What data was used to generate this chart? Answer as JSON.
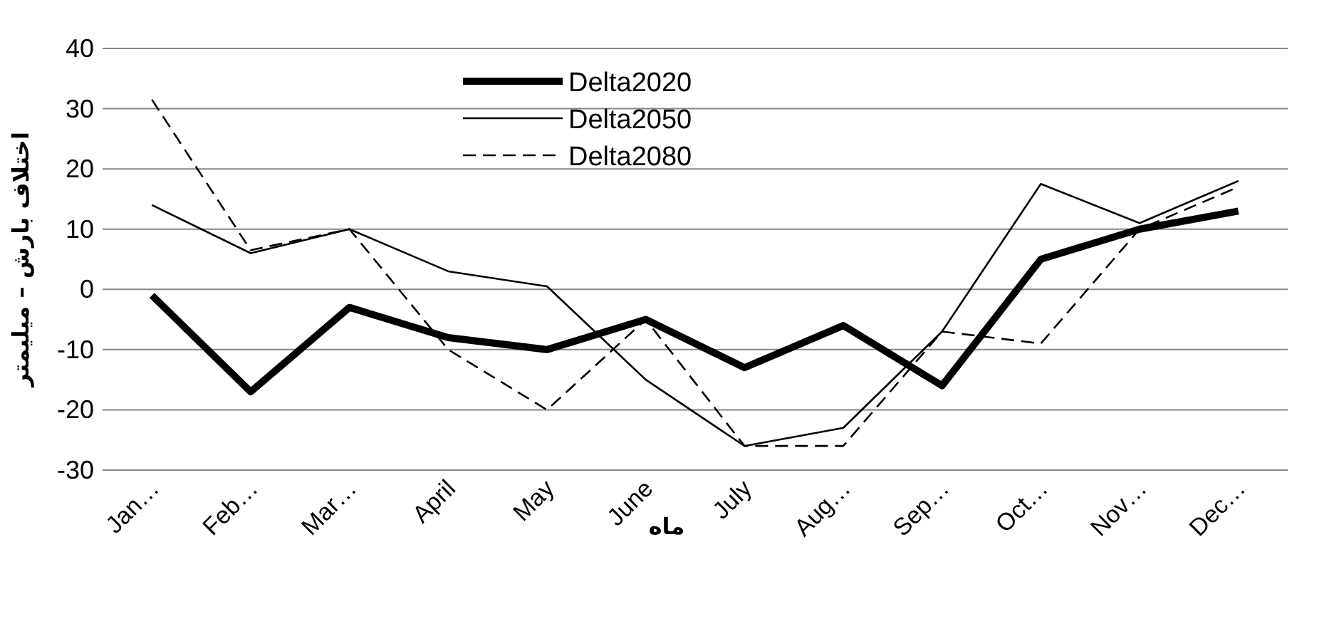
{
  "chart_data": {
    "type": "line",
    "xlabel": "ماه",
    "ylabel": "اختلاف بارش – میلیمتر",
    "categories": [
      "Jan…",
      "Feb…",
      "Mar…",
      "April",
      "May",
      "June",
      "July",
      "Aug…",
      "Sep…",
      "Oct…",
      "Nov…",
      "Dec…"
    ],
    "series": [
      {
        "name": "Delta2020",
        "color": "#000000",
        "line_style": "solid",
        "values": [
          -1,
          -17,
          -3,
          -8,
          -10,
          -5,
          -13,
          -6,
          -16,
          5,
          10,
          13
        ]
      },
      {
        "name": "Delta2050",
        "color": "#000000",
        "line_style": "solid",
        "values": [
          14,
          6,
          10,
          3,
          0.5,
          -15,
          -26,
          -23,
          -7,
          17.5,
          11,
          18
        ]
      },
      {
        "name": "Delta2080",
        "color": "#000000",
        "line_style": "dashed",
        "values": [
          31.5,
          6.5,
          10,
          -10,
          -20,
          -5,
          -26,
          -26,
          -7,
          -9,
          10,
          17
        ]
      }
    ],
    "ylim": [
      -30,
      40
    ],
    "yticks": [
      -30,
      -20,
      -10,
      0,
      10,
      20,
      30,
      40
    ],
    "grid": "y",
    "legend": "top"
  }
}
